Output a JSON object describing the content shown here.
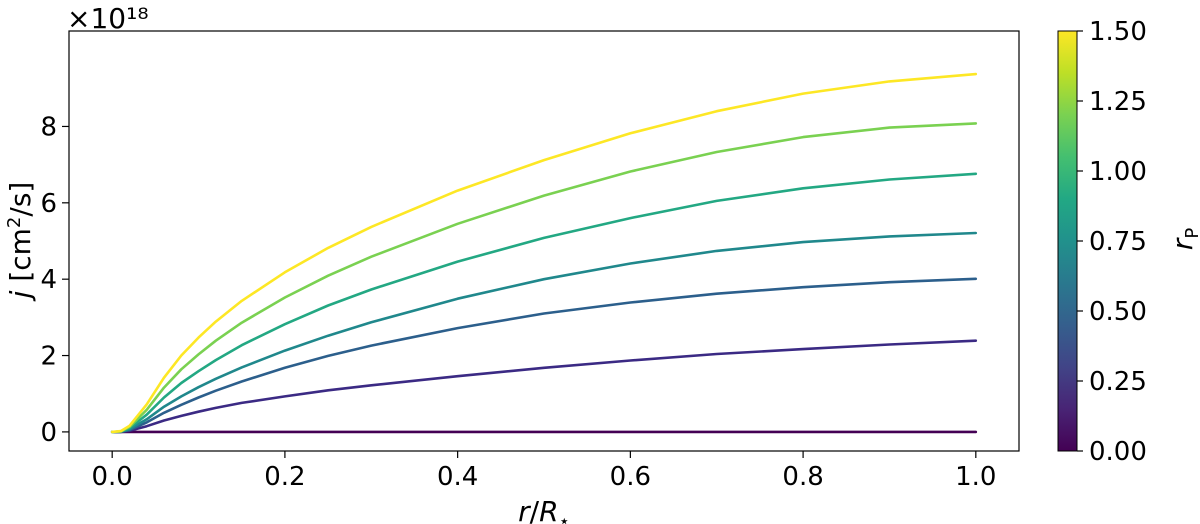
{
  "chart_data": {
    "type": "line",
    "xlabel": "r/R_⋆",
    "ylabel": "j [cm²/s]",
    "y_multiplier": "×10¹⁸",
    "xlim": [
      -0.05,
      1.05
    ],
    "ylim": [
      -0.5,
      10.5
    ],
    "xticks": [
      "0.0",
      "0.2",
      "0.4",
      "0.6",
      "0.8",
      "1.0"
    ],
    "xtick_values": [
      0.0,
      0.2,
      0.4,
      0.6,
      0.8,
      1.0
    ],
    "yticks": [
      "0",
      "2",
      "4",
      "6",
      "8"
    ],
    "ytick_values": [
      0,
      2,
      4,
      6,
      8
    ],
    "colormap": "viridis",
    "colorbar": {
      "label": "r_P",
      "range": [
        0.0,
        1.5
      ],
      "ticks": [
        "0.00",
        "0.25",
        "0.50",
        "0.75",
        "1.00",
        "1.25",
        "1.50"
      ],
      "tick_values": [
        0.0,
        0.25,
        0.5,
        0.75,
        1.0,
        1.25,
        1.5
      ]
    },
    "grid": false,
    "x": [
      0.0,
      0.01,
      0.02,
      0.04,
      0.06,
      0.08,
      0.1,
      0.12,
      0.15,
      0.2,
      0.25,
      0.3,
      0.4,
      0.5,
      0.6,
      0.7,
      0.8,
      0.9,
      1.0
    ],
    "series": [
      {
        "r_p": 0.0,
        "color": "#440154",
        "values": [
          0.0,
          0.0,
          0.0,
          0.0,
          0.0,
          0.0,
          0.0,
          0.0,
          0.0,
          0.0,
          0.0,
          0.0,
          0.0,
          0.0,
          0.0,
          0.0,
          0.0,
          0.0,
          0.0
        ]
      },
      {
        "r_p": 0.25,
        "color": "#3b2a84",
        "values": [
          0.0,
          0.0,
          0.03,
          0.15,
          0.3,
          0.42,
          0.53,
          0.63,
          0.76,
          0.93,
          1.09,
          1.22,
          1.46,
          1.68,
          1.87,
          2.04,
          2.17,
          2.29,
          2.39
        ]
      },
      {
        "r_p": 0.5,
        "color": "#2c5f8c",
        "values": [
          0.0,
          0.0,
          0.05,
          0.25,
          0.5,
          0.71,
          0.9,
          1.08,
          1.32,
          1.68,
          1.99,
          2.26,
          2.72,
          3.1,
          3.39,
          3.62,
          3.79,
          3.92,
          4.01
        ]
      },
      {
        "r_p": 0.75,
        "color": "#20888c",
        "values": [
          0.0,
          0.01,
          0.07,
          0.33,
          0.66,
          0.93,
          1.17,
          1.39,
          1.69,
          2.13,
          2.52,
          2.87,
          3.49,
          4.0,
          4.41,
          4.74,
          4.97,
          5.12,
          5.21
        ]
      },
      {
        "r_p": 1.0,
        "color": "#23a883",
        "values": [
          0.0,
          0.01,
          0.1,
          0.45,
          0.9,
          1.28,
          1.59,
          1.88,
          2.27,
          2.82,
          3.31,
          3.73,
          4.46,
          5.08,
          5.6,
          6.05,
          6.38,
          6.61,
          6.76
        ]
      },
      {
        "r_p": 1.25,
        "color": "#7ad151",
        "values": [
          0.0,
          0.01,
          0.13,
          0.58,
          1.16,
          1.64,
          2.03,
          2.39,
          2.86,
          3.52,
          4.09,
          4.59,
          5.45,
          6.19,
          6.82,
          7.33,
          7.72,
          7.97,
          8.08
        ]
      },
      {
        "r_p": 1.5,
        "color": "#fde725",
        "values": [
          0.0,
          0.02,
          0.16,
          0.72,
          1.42,
          2.0,
          2.47,
          2.89,
          3.43,
          4.18,
          4.82,
          5.37,
          6.32,
          7.12,
          7.82,
          8.4,
          8.86,
          9.18,
          9.37
        ]
      }
    ]
  }
}
